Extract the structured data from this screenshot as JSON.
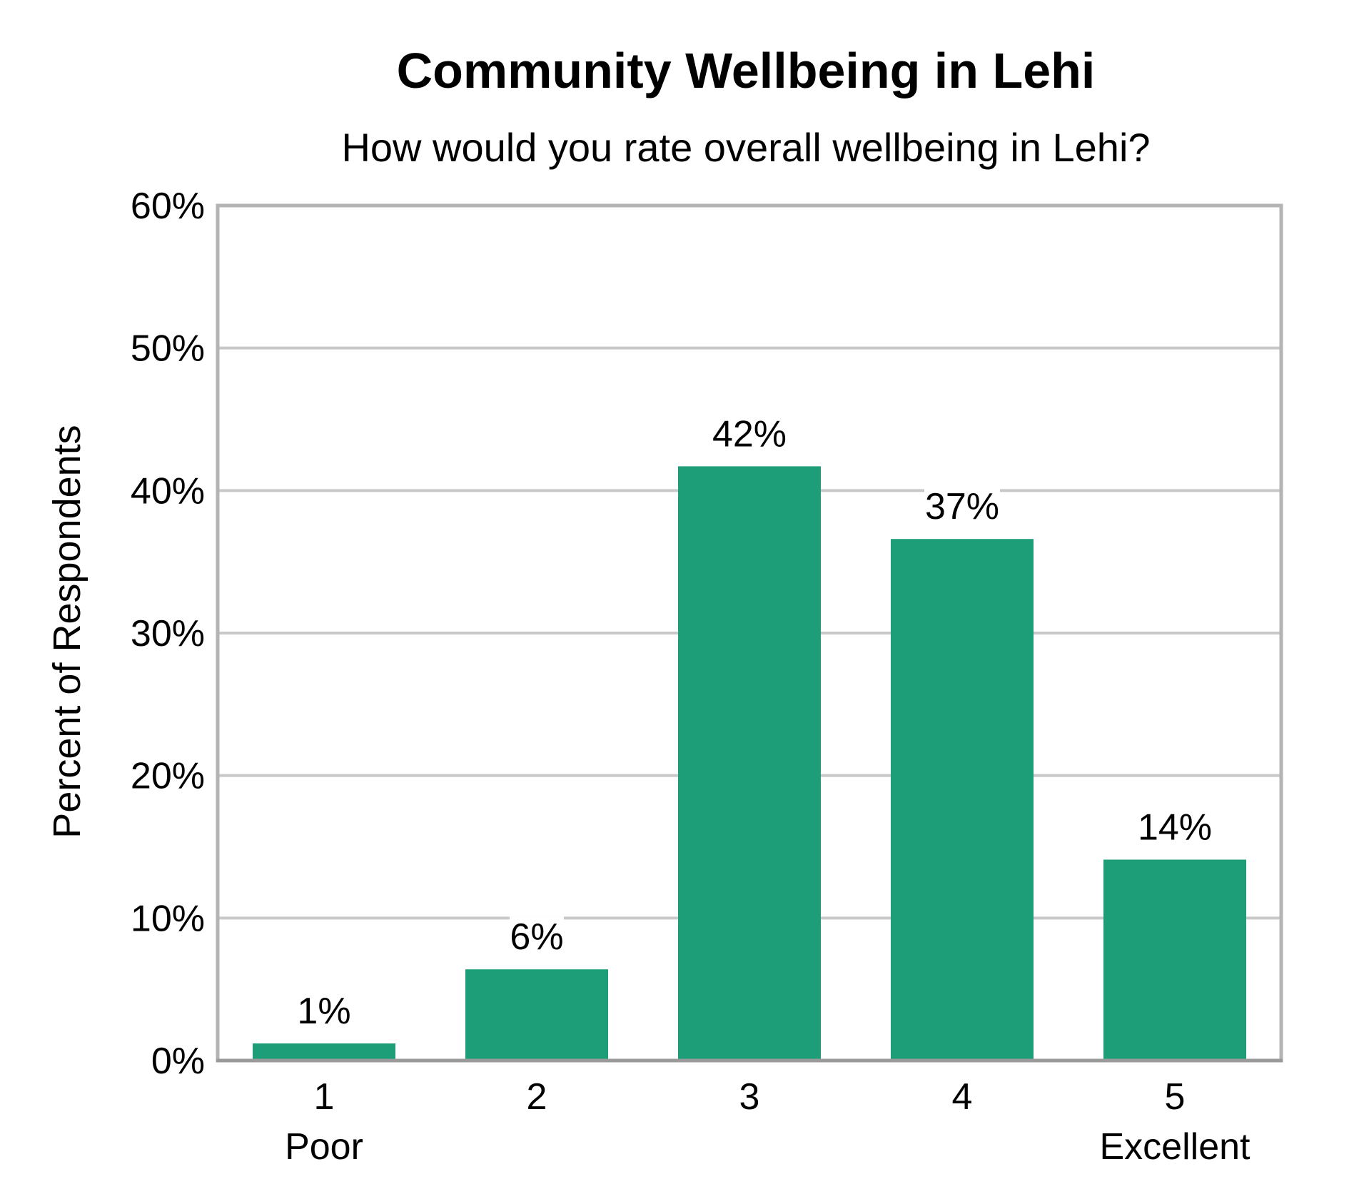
{
  "chart_data": {
    "type": "bar",
    "title": "Community Wellbeing in Lehi",
    "subtitle": "How would you rate overall wellbeing in Lehi?",
    "ylabel": "Percent of Respondents",
    "xlabel": "",
    "categories": [
      "1",
      "2",
      "3",
      "4",
      "5"
    ],
    "category_sublabels": [
      "Poor",
      "",
      "",
      "",
      "Excellent"
    ],
    "values": [
      1.2,
      6.4,
      41.7,
      36.6,
      14.1
    ],
    "data_labels": [
      "1%",
      "6%",
      "42%",
      "37%",
      "14%"
    ],
    "ylim": [
      0,
      60
    ],
    "yticks": [
      0,
      10,
      20,
      30,
      40,
      50,
      60
    ],
    "ytick_labels": [
      "0%",
      "10%",
      "20%",
      "30%",
      "40%",
      "50%",
      "60%"
    ],
    "grid": true,
    "legend": "none",
    "colors": {
      "bar": "#1e9e78",
      "gridline": "#c8c8c8",
      "frame": "#b4b4b4",
      "text": "#000000"
    }
  }
}
